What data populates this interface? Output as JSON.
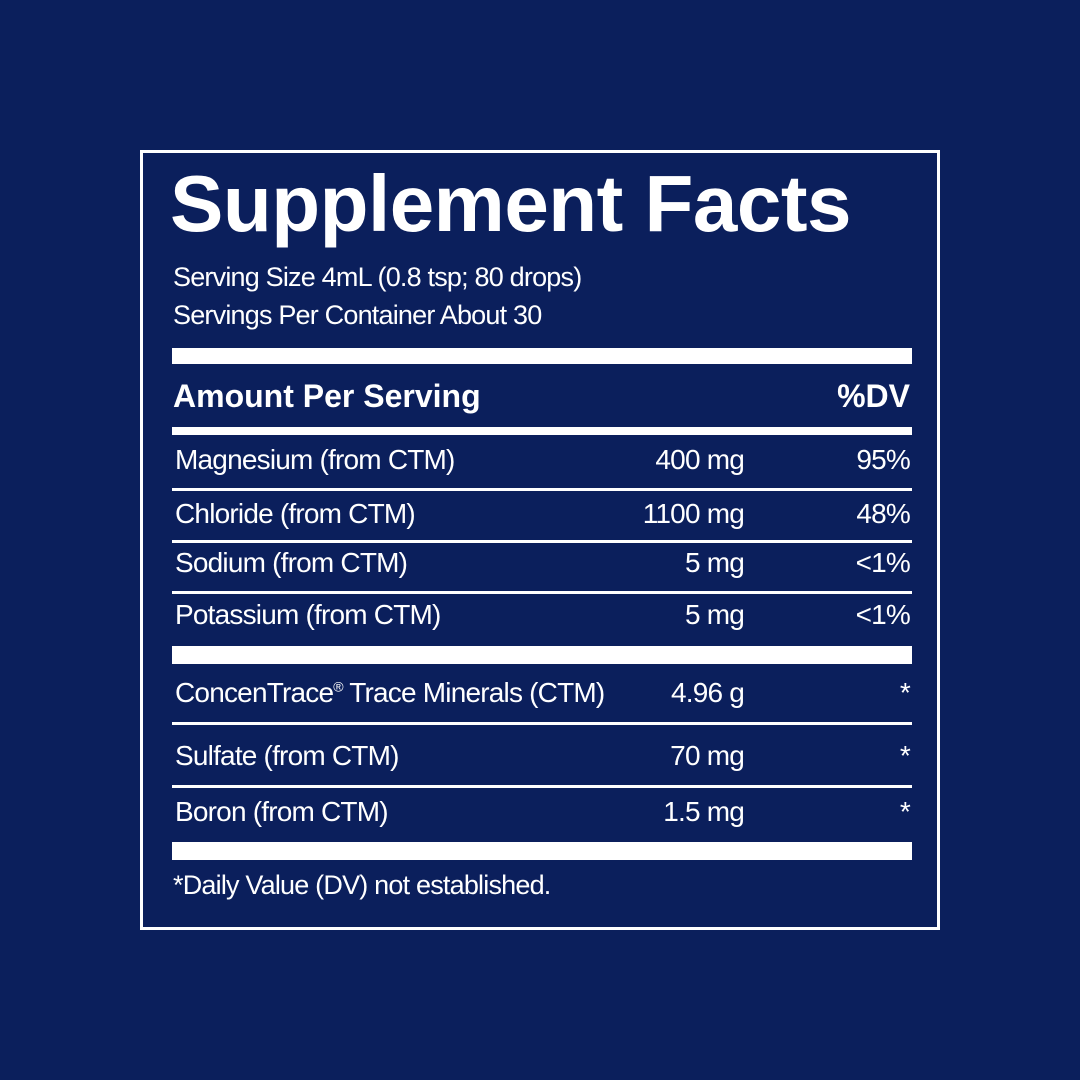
{
  "title": "Supplement Facts",
  "serving_size": "Serving Size 4mL (0.8 tsp; 80 drops)",
  "servings_per_container": "Servings Per Container About 30",
  "header": {
    "amount": "Amount Per Serving",
    "dv": "%DV"
  },
  "group1": [
    {
      "name": "Magnesium (from CTM)",
      "amount": "400 mg",
      "dv": "95%"
    },
    {
      "name": "Chloride (from CTM)",
      "amount": "1100 mg",
      "dv": "48%"
    },
    {
      "name": "Sodium (from CTM)",
      "amount": "5 mg",
      "dv": "<1%"
    },
    {
      "name": "Potassium (from CTM)",
      "amount": "5 mg",
      "dv": "<1%"
    }
  ],
  "group2": [
    {
      "name": "ConcenTrace",
      "reg": "®",
      "name_rest": " Trace Minerals (CTM)",
      "amount": "4.96 g",
      "dv": "*"
    },
    {
      "name": "Sulfate (from CTM)",
      "amount": "70 mg",
      "dv": "*"
    },
    {
      "name": "Boron (from CTM)",
      "amount": "1.5 mg",
      "dv": "*"
    }
  ],
  "footnote": "*Daily Value (DV) not established.",
  "colors": {
    "background": "#0b1f5c",
    "foreground": "#ffffff"
  }
}
